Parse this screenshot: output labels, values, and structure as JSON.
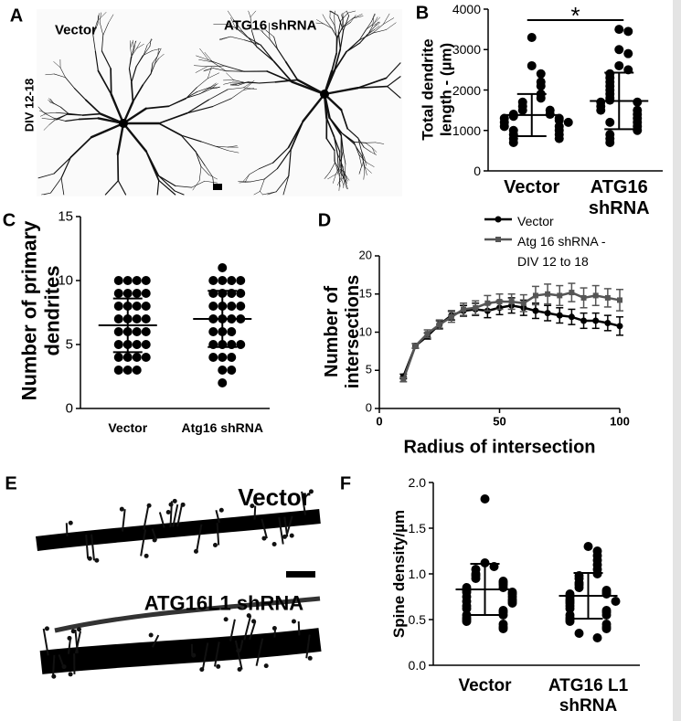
{
  "figure": {
    "panels": [
      {
        "label": "A",
        "texts": [
          "Vector",
          "ATG16 shRNA",
          "DIV 12-18"
        ]
      },
      {
        "label": "E",
        "texts": [
          "Vector",
          "ATG16L1 shRNA"
        ]
      }
    ]
  },
  "chart_data": [
    {
      "type": "dotplot",
      "label": "B",
      "ylabel": "Total dendrite length - (µm)",
      "annotation": "*",
      "categories": [
        "Vector",
        "ATG16 shRNA"
      ],
      "color": "#000000",
      "ylim": [
        0,
        4000
      ],
      "yticks": [
        0,
        1000,
        2000,
        3000,
        4000
      ],
      "groups": [
        {
          "values": [
            3300,
            2600,
            2400,
            2200,
            2100,
            1900,
            1800,
            1700,
            1600,
            1500,
            1500,
            1400,
            1400,
            1350,
            1300,
            1300,
            1250,
            1200,
            1200,
            1100,
            1100,
            1000,
            1000,
            900,
            900,
            800,
            800,
            700
          ],
          "mean": 1380,
          "sd": 520
        },
        {
          "values": [
            3500,
            3450,
            3000,
            2900,
            2600,
            2500,
            2400,
            2300,
            2200,
            2100,
            2000,
            1900,
            1800,
            1750,
            1700,
            1700,
            1600,
            1500,
            1500,
            1400,
            1300,
            1200,
            1200,
            1100,
            1000,
            900,
            800,
            700
          ],
          "mean": 1730,
          "sd": 700
        }
      ]
    },
    {
      "type": "dotplot",
      "label": "C",
      "ylabel": "Number of primary dendrites",
      "categories": [
        "Vector",
        "Atg16 shRNA"
      ],
      "color": "#000000",
      "ylim": [
        0,
        15
      ],
      "yticks": [
        0,
        5,
        10,
        15
      ],
      "groups": [
        {
          "values": [
            10,
            10,
            10,
            10,
            9,
            9,
            9,
            9,
            8,
            8,
            8,
            8,
            7,
            7,
            7,
            7,
            6,
            6,
            6,
            6,
            5,
            5,
            5,
            5,
            4,
            4,
            4,
            4,
            3,
            3,
            3
          ],
          "mean": 6.5,
          "sd": 2.1
        },
        {
          "values": [
            11,
            10,
            10,
            10,
            10,
            9,
            9,
            9,
            9,
            8,
            8,
            8,
            8,
            7,
            7,
            7,
            7,
            6,
            6,
            6,
            5,
            5,
            5,
            5,
            4,
            4,
            4,
            3,
            3,
            2
          ],
          "mean": 7,
          "sd": 2.2
        }
      ]
    },
    {
      "type": "line",
      "label": "D",
      "xlabel": "Radius of intersection",
      "ylabel": "Number of intersections",
      "x": [
        10,
        15,
        20,
        25,
        30,
        35,
        40,
        45,
        50,
        55,
        60,
        65,
        70,
        75,
        80,
        85,
        90,
        95,
        100
      ],
      "xlim": [
        0,
        100
      ],
      "xticks": [
        0,
        50,
        100
      ],
      "ylim": [
        0,
        20
      ],
      "yticks": [
        0,
        5,
        10,
        15,
        20
      ],
      "series": [
        {
          "name": "Vector",
          "color": "#000000",
          "marker": "circle",
          "values": [
            4.2,
            8.2,
            9.5,
            11,
            12.2,
            12.8,
            13,
            12.8,
            13.2,
            13.5,
            13.2,
            12.8,
            12.5,
            12.2,
            12,
            11.5,
            11.5,
            11.2,
            10.8
          ],
          "errors": [
            0.3,
            0.3,
            0.4,
            0.5,
            0.6,
            0.7,
            0.8,
            0.9,
            0.9,
            1,
            1,
            1,
            1,
            1,
            1,
            1,
            1,
            1,
            1.2
          ]
        },
        {
          "name": "Atg 16 shRNA - DIV 12 to 18",
          "color": "#555555",
          "marker": "square",
          "values": [
            3.8,
            8.2,
            9.8,
            11,
            12,
            13,
            13.2,
            13.8,
            14,
            14,
            13.8,
            14.8,
            15,
            14.8,
            15.2,
            14.5,
            14.8,
            14.5,
            14.2
          ],
          "errors": [
            0.3,
            0.3,
            0.5,
            0.6,
            0.7,
            0.8,
            0.9,
            1,
            1,
            1,
            1.1,
            1.2,
            1.3,
            1.3,
            1.2,
            1.3,
            1.3,
            1.2,
            1.4
          ]
        }
      ]
    },
    {
      "type": "dotplot",
      "label": "F",
      "ylabel": "Spine density/µm",
      "categories": [
        "Vector",
        "ATG16 L1 shRNA"
      ],
      "color": "#000000",
      "ylim": [
        0,
        2
      ],
      "yticks": [
        {
          "value": 0,
          "label": "0.0"
        },
        0.5,
        {
          "value": 1,
          "label": "1.0"
        },
        1.5,
        {
          "value": 2,
          "label": "2.0"
        }
      ],
      "groups": [
        {
          "values": [
            1.82,
            1.12,
            1.08,
            1.05,
            1.0,
            0.98,
            0.95,
            0.92,
            0.9,
            0.88,
            0.85,
            0.85,
            0.82,
            0.8,
            0.8,
            0.78,
            0.75,
            0.75,
            0.72,
            0.7,
            0.7,
            0.68,
            0.65,
            0.62,
            0.6,
            0.58,
            0.55,
            0.55,
            0.52,
            0.5,
            0.48,
            0.45,
            0.42,
            0.4
          ],
          "mean": 0.83,
          "sd": 0.28
        },
        {
          "values": [
            1.3,
            1.25,
            1.2,
            1.15,
            1.1,
            1.05,
            1.0,
            0.98,
            0.95,
            0.9,
            0.88,
            0.85,
            0.82,
            0.8,
            0.78,
            0.78,
            0.75,
            0.72,
            0.7,
            0.7,
            0.68,
            0.65,
            0.62,
            0.6,
            0.58,
            0.55,
            0.55,
            0.52,
            0.5,
            0.48,
            0.45,
            0.42,
            0.4,
            0.35,
            0.3
          ],
          "mean": 0.76,
          "sd": 0.25
        }
      ]
    }
  ]
}
